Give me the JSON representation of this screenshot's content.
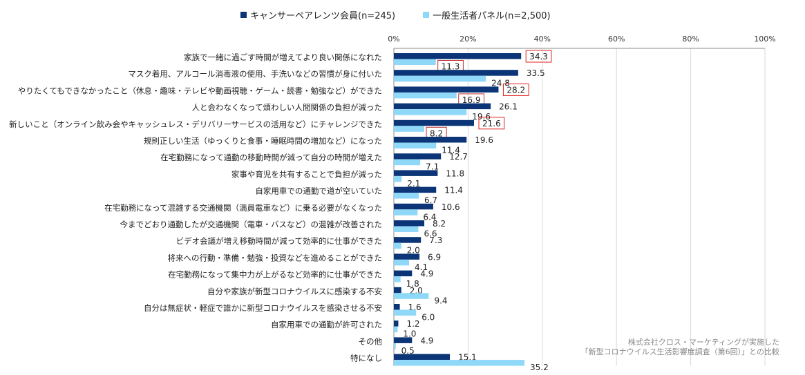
{
  "chart_data": {
    "type": "bar",
    "orientation": "horizontal",
    "xlim": [
      0,
      100
    ],
    "xticks": [
      "0%",
      "20%",
      "40%",
      "60%",
      "80%",
      "100%"
    ],
    "xtick_values": [
      0,
      20,
      40,
      60,
      80,
      100
    ],
    "grid": true,
    "legend_position": "top",
    "categories": [
      "家族で一緒に過ごす時間が増えてより良い関係になれた",
      "マスク着用、アルコール消毒液の使用、手洗いなどの習慣が身に付いた",
      "やりたくてもできなかったこと（休息・趣味・テレビや動画視聴・ゲーム・読書・勉強など）ができた",
      "人と会わなくなって煩わしい人間関係の負担が減った",
      "新しいこと（オンライン飲み会やキャッシュレス・デリバリーサービスの活用など）にチャレンジできた",
      "規則正しい生活（ゆっくりと食事・睡眠時間の増加など）になった",
      "在宅勤務になって通勤の移動時間が減って自分の時間が増えた",
      "家事や育児を共有することで負担が減った",
      "自家用車での通勤で道が空いていた",
      "在宅勤務になって混雑する交通機関（満員電車など）に乗る必要がなくなった",
      "今までどおり通勤したが交通機関（電車・バスなど）の混雑が改善された",
      "ビデオ会議が増え移動時間が減って効率的に仕事ができた",
      "将来への行動・準備・勉強・投資などを進めることができた",
      "在宅勤務になって集中力が上がるなど効率的に仕事ができた",
      "自分や家族が新型コロナウイルスに感染する不安",
      "自分は無症状・軽症で誰かに新型コロナウイルスを感染させる不安",
      "自家用車での通勤が許可された",
      "その他",
      "特になし"
    ],
    "series": [
      {
        "name": "キャンサーペアレンツ会員(n=245)",
        "color": "#0b3576",
        "values": [
          34.3,
          33.5,
          28.2,
          26.1,
          21.6,
          19.6,
          12.7,
          11.8,
          11.4,
          10.6,
          8.2,
          7.3,
          6.9,
          4.9,
          2.0,
          1.6,
          1.2,
          4.9,
          15.1
        ]
      },
      {
        "name": "一般生活者パネル(n=2,500)",
        "color": "#8fd8f8",
        "values": [
          11.3,
          24.8,
          16.9,
          19.6,
          8.2,
          11.4,
          7.1,
          2.1,
          6.7,
          6.4,
          6.6,
          2.0,
          4.1,
          1.8,
          9.4,
          6.0,
          1.0,
          0.5,
          35.2
        ]
      }
    ],
    "highlighted_rows": [
      0,
      2,
      4
    ],
    "highlight_color": "#e02020",
    "annotation": [
      "株式会社クロス・マーケティングが実施した",
      "「新型コロナウイルス生活影響度調査（第6回）」との比較"
    ]
  }
}
